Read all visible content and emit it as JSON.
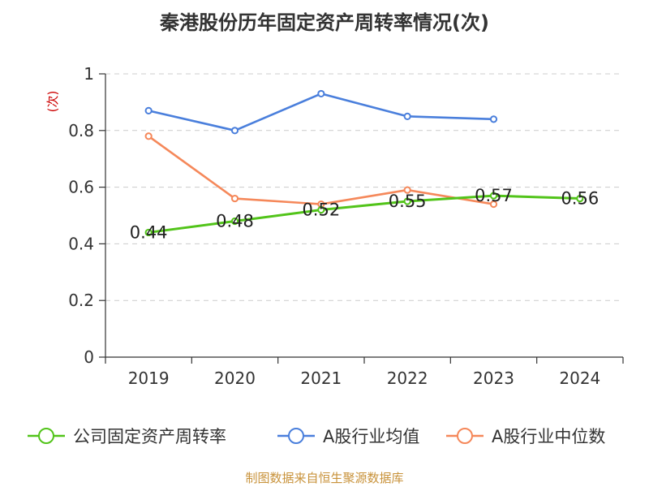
{
  "chart_data": {
    "type": "line",
    "title": "秦港股份历年固定资产周转率情况(次)",
    "ylabel": "(次)",
    "categories": [
      "2019",
      "2020",
      "2021",
      "2022",
      "2023",
      "2024"
    ],
    "y_ticks": [
      "0",
      "0.2",
      "0.4",
      "0.6",
      "0.8",
      "1"
    ],
    "ylim": [
      0,
      1
    ],
    "grid": true,
    "legend_position": "bottom",
    "series": [
      {
        "name": "公司固定资产周转率",
        "color": "#52c41a",
        "values": [
          0.44,
          0.48,
          0.52,
          0.55,
          0.57,
          0.56
        ],
        "labels": [
          "0.44",
          "0.48",
          "0.52",
          "0.55",
          "0.57",
          "0.56"
        ]
      },
      {
        "name": "A股行业均值",
        "color": "#4a7fdc",
        "values": [
          0.87,
          0.8,
          0.93,
          0.85,
          0.84,
          null
        ]
      },
      {
        "name": "A股行业中位数",
        "color": "#f5885a",
        "values": [
          0.78,
          0.56,
          0.54,
          0.59,
          0.54,
          null
        ]
      }
    ]
  },
  "source_text": "制图数据来自恒生聚源数据库",
  "colors": {
    "title": "#333333",
    "source": "#c8923a",
    "ylabel": "#cc0000",
    "grid": "#cccccc",
    "axis": "#333333"
  }
}
